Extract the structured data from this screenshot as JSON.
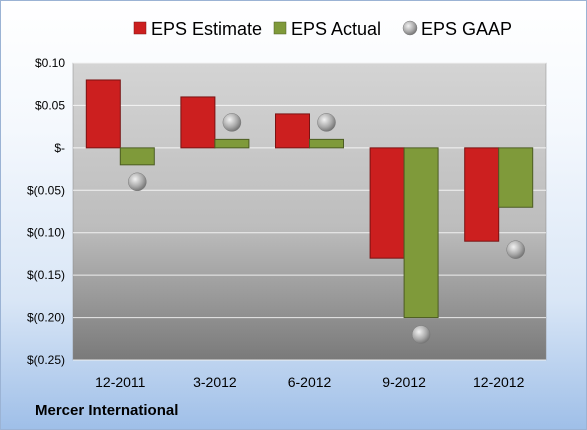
{
  "company": "Mercer International",
  "chart_data": {
    "type": "bar",
    "categories": [
      "12-2011",
      "3-2012",
      "6-2012",
      "9-2012",
      "12-2012"
    ],
    "series": [
      {
        "name": "EPS Estimate",
        "kind": "bar",
        "color": "#cc1f1f",
        "values": [
          0.08,
          0.06,
          0.04,
          -0.13,
          -0.11
        ]
      },
      {
        "name": "EPS Actual",
        "kind": "bar",
        "color": "#7f9a3a",
        "values": [
          -0.02,
          0.01,
          0.01,
          -0.2,
          -0.07
        ]
      },
      {
        "name": "EPS GAAP",
        "kind": "marker",
        "color": "#a8a8a8",
        "values": [
          -0.04,
          0.03,
          0.03,
          -0.22,
          -0.12
        ]
      }
    ],
    "y_ticks": [
      0.1,
      0.05,
      0,
      -0.05,
      -0.1,
      -0.15,
      -0.2,
      -0.25
    ],
    "y_tick_labels": [
      "$0.10",
      "$0.05",
      "$-",
      "$(0.05)",
      "$(0.10)",
      "$(0.15)",
      "$(0.20)",
      "$(0.25)"
    ],
    "ylim": [
      -0.25,
      0.1
    ],
    "grid": true,
    "legend_position": "top"
  }
}
